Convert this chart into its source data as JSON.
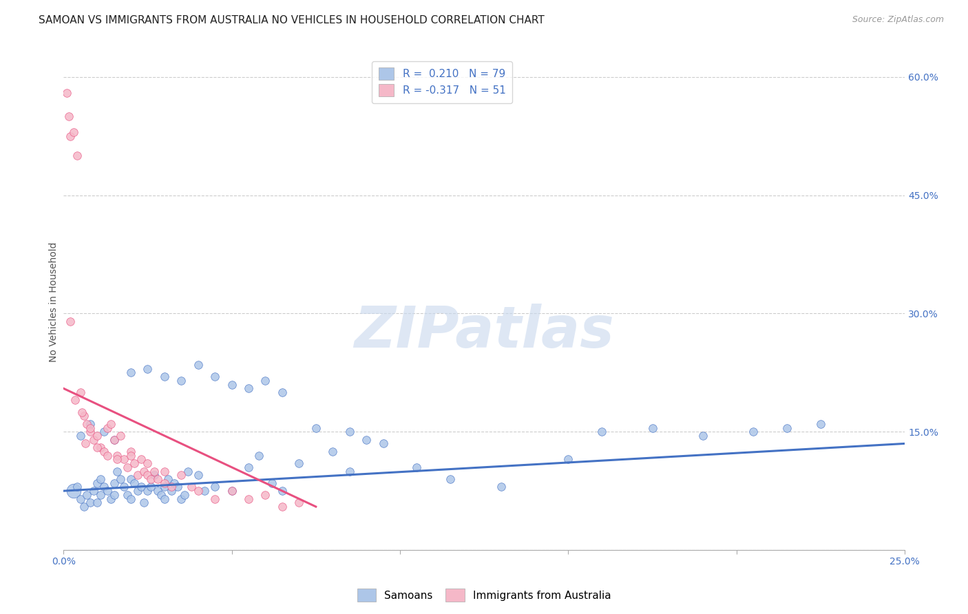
{
  "title": "SAMOAN VS IMMIGRANTS FROM AUSTRALIA NO VEHICLES IN HOUSEHOLD CORRELATION CHART",
  "source": "Source: ZipAtlas.com",
  "ylabel": "No Vehicles in Household",
  "xlim": [
    0.0,
    25.0
  ],
  "ylim": [
    0.0,
    63.0
  ],
  "watermark": "ZIPatlas",
  "color_blue": "#adc6e8",
  "color_pink": "#f5b8c8",
  "color_line_blue": "#4472c4",
  "color_line_pink": "#e85080",
  "background_color": "#ffffff",
  "blue_scatter_x": [
    0.3,
    0.4,
    0.5,
    0.6,
    0.7,
    0.8,
    0.9,
    1.0,
    1.0,
    1.1,
    1.1,
    1.2,
    1.3,
    1.4,
    1.5,
    1.5,
    1.6,
    1.7,
    1.8,
    1.9,
    2.0,
    2.0,
    2.1,
    2.2,
    2.3,
    2.4,
    2.5,
    2.6,
    2.7,
    2.8,
    2.9,
    3.0,
    3.0,
    3.1,
    3.2,
    3.3,
    3.4,
    3.5,
    3.6,
    3.7,
    4.0,
    4.2,
    4.5,
    5.0,
    5.5,
    5.8,
    6.2,
    6.5,
    7.0,
    8.0,
    8.5,
    9.5,
    10.5,
    11.5,
    13.0,
    15.0,
    16.0,
    17.5,
    19.0,
    20.5,
    21.5,
    22.5,
    0.5,
    0.8,
    1.2,
    1.5,
    2.0,
    2.5,
    3.0,
    3.5,
    4.0,
    4.5,
    5.0,
    5.5,
    6.0,
    6.5,
    7.5,
    8.5,
    9.0
  ],
  "blue_scatter_y": [
    7.5,
    8.0,
    6.5,
    5.5,
    7.0,
    6.0,
    7.5,
    8.5,
    6.0,
    9.0,
    7.0,
    8.0,
    7.5,
    6.5,
    8.5,
    7.0,
    10.0,
    9.0,
    8.0,
    7.0,
    6.5,
    9.0,
    8.5,
    7.5,
    8.0,
    6.0,
    7.5,
    8.0,
    9.5,
    7.5,
    7.0,
    6.5,
    8.0,
    9.0,
    7.5,
    8.5,
    8.0,
    6.5,
    7.0,
    10.0,
    9.5,
    7.5,
    8.0,
    7.5,
    10.5,
    12.0,
    8.5,
    7.5,
    11.0,
    12.5,
    10.0,
    13.5,
    10.5,
    9.0,
    8.0,
    11.5,
    15.0,
    15.5,
    14.5,
    15.0,
    15.5,
    16.0,
    14.5,
    16.0,
    15.0,
    14.0,
    22.5,
    23.0,
    22.0,
    21.5,
    23.5,
    22.0,
    21.0,
    20.5,
    21.5,
    20.0,
    15.5,
    15.0,
    14.0
  ],
  "pink_scatter_x": [
    0.1,
    0.15,
    0.2,
    0.3,
    0.4,
    0.5,
    0.6,
    0.7,
    0.8,
    0.9,
    1.0,
    1.1,
    1.2,
    1.3,
    1.4,
    1.5,
    1.6,
    1.7,
    1.8,
    1.9,
    2.0,
    2.1,
    2.2,
    2.3,
    2.4,
    2.5,
    2.6,
    2.7,
    2.8,
    3.0,
    3.2,
    3.5,
    3.8,
    4.0,
    4.5,
    5.0,
    5.5,
    6.0,
    6.5,
    7.0,
    0.2,
    0.35,
    0.55,
    0.65,
    0.8,
    1.0,
    1.3,
    1.6,
    2.0,
    2.5,
    3.0
  ],
  "pink_scatter_y": [
    58.0,
    55.0,
    52.5,
    53.0,
    50.0,
    20.0,
    17.0,
    16.0,
    15.0,
    14.0,
    14.5,
    13.0,
    12.5,
    15.5,
    16.0,
    14.0,
    12.0,
    14.5,
    11.5,
    10.5,
    12.5,
    11.0,
    9.5,
    11.5,
    10.0,
    9.5,
    9.0,
    10.0,
    9.0,
    8.5,
    8.0,
    9.5,
    8.0,
    7.5,
    6.5,
    7.5,
    6.5,
    7.0,
    5.5,
    6.0,
    29.0,
    19.0,
    17.5,
    13.5,
    15.5,
    13.0,
    12.0,
    11.5,
    12.0,
    11.0,
    10.0
  ],
  "blue_line_x": [
    0.0,
    25.0
  ],
  "blue_line_y": [
    7.5,
    13.5
  ],
  "pink_line_x": [
    0.0,
    7.5
  ],
  "pink_line_y": [
    20.5,
    5.5
  ],
  "y_gridlines": [
    0.0,
    15.0,
    30.0,
    45.0,
    60.0
  ],
  "y_right_labels": [
    "",
    "15.0%",
    "30.0%",
    "45.0%",
    "60.0%"
  ],
  "x_labels": [
    "0.0%",
    "25.0%"
  ],
  "grid_color": "#cccccc",
  "title_fontsize": 11,
  "legend_fontsize": 11,
  "tick_fontsize": 10,
  "watermark_fontsize": 60,
  "watermark_color": "#c8d8ee",
  "watermark_alpha": 0.6,
  "dot_size": 70,
  "dot_size_big": 220
}
